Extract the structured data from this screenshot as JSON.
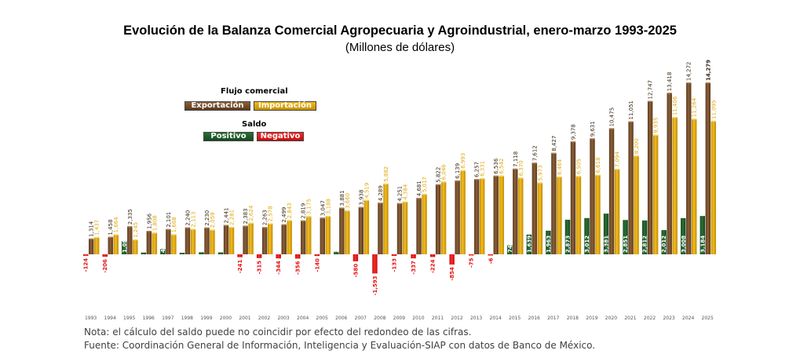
{
  "header": {
    "title": "Evolución de la Balanza Comercial Agropecuaria y Agroindustrial, enero-marzo 1993-2025",
    "subtitle": "(Millones de dólares)"
  },
  "legend": {
    "flow_title": "Flujo comercial",
    "export_label": "Exportación",
    "import_label": "Importación",
    "balance_title": "Saldo",
    "positive_label": "Positivo",
    "negative_label": "Negativo"
  },
  "colors": {
    "export": "#7a5230",
    "import": "#e0a810",
    "positive": "#1e5c2a",
    "negative": "#e81515"
  },
  "footnotes": {
    "note": "Nota: el cálculo del saldo puede no coincidir por efecto del redondeo de las cifras.",
    "source": "Fuente: Coordinación General de Información, Inteligencia y Evaluación-SIAP con datos de Banco de México."
  },
  "chart_data": {
    "type": "bar",
    "categories": [
      "1993",
      "1994",
      "1995",
      "1996",
      "1997",
      "1998",
      "1999",
      "2000",
      "2001",
      "2002",
      "2003",
      "2004",
      "2005",
      "2006",
      "2007",
      "2008",
      "2009",
      "2010",
      "2011",
      "2012",
      "2013",
      "2014",
      "2015",
      "2016",
      "2017",
      "2018",
      "2019",
      "2020",
      "2021",
      "2022",
      "2023",
      "2024",
      "2025"
    ],
    "series": [
      {
        "name": "Exportación",
        "values": [
          1314,
          1458,
          2335,
          1956,
          2101,
          2240,
          2230,
          2441,
          2383,
          2263,
          2499,
          2819,
          3047,
          3881,
          3938,
          4289,
          4251,
          4681,
          5822,
          6139,
          6257,
          6536,
          7118,
          7612,
          8427,
          9378,
          9631,
          10475,
          11051,
          12747,
          13418,
          14272,
          14279
        ],
        "labels": [
          "1,314",
          "1,458",
          "2,335",
          "1,956",
          "2,101",
          "2,240",
          "2,230",
          "2,441",
          "2,383",
          "2,263",
          "2,499",
          "2,819",
          "3,047",
          "3,881",
          "3,938",
          "4,289",
          "4,251",
          "4,681",
          "5,822",
          "6,139",
          "6,257",
          "6,536",
          "7,118",
          "7,612",
          "8,427",
          "9,378",
          "9,631",
          "10,475",
          "11,051",
          "12,747",
          "13,418",
          "14,272",
          "14,279"
        ]
      },
      {
        "name": "Importación",
        "values": [
          1437,
          1664,
          1245,
          1808,
          1668,
          2113,
          2059,
          2281,
          2624,
          2578,
          2843,
          3175,
          3188,
          3660,
          4519,
          5882,
          4384,
          5017,
          6046,
          6993,
          6331,
          6542,
          6370,
          5973,
          6464,
          6505,
          6618,
          7094,
          8200,
          9935,
          11406,
          11264,
          11095
        ],
        "labels": [
          "1,437",
          "1,664",
          "1,245",
          "1,808",
          "1,668",
          "2,113",
          "2,059",
          "2,281",
          "2,624",
          "2,578",
          "2,843",
          "3,175",
          "3,188",
          "3,660",
          "4,519",
          "5,882",
          "4,384",
          "5,017",
          "6,046",
          "6,993",
          "6,331",
          "6,542",
          "6,370",
          "5,973",
          "6,464",
          "6,505",
          "6,618",
          "7,094",
          "8,200",
          "9,935",
          "11,406",
          "11,264",
          "11,095"
        ]
      },
      {
        "name": "Saldo",
        "values": [
          -124,
          -206,
          1089,
          148,
          433,
          127,
          170,
          159,
          -241,
          -315,
          -344,
          -356,
          -140,
          221,
          -580,
          -1593,
          -133,
          -337,
          -224,
          -854,
          -75,
          -6,
          748,
          1639,
          1963,
          2873,
          3012,
          3381,
          2851,
          2812,
          2012,
          3008,
          3184
        ],
        "labels": [
          "-124",
          "-206",
          "1,089",
          "148",
          "433",
          "127",
          "170",
          "159",
          "-241",
          "-315",
          "-344",
          "-356",
          "-140",
          "221",
          "-580",
          "-1,593",
          "-133",
          "-337",
          "-224",
          "-854",
          "-75",
          "-6",
          "748",
          "1,639",
          "1,963",
          "2,873",
          "3,012",
          "3,381",
          "2,851",
          "2,812",
          "2,012",
          "3,008",
          "3,184"
        ]
      }
    ],
    "legend": [
      "Exportación",
      "Importación",
      "Positivo",
      "Negativo"
    ],
    "grid": false
  }
}
